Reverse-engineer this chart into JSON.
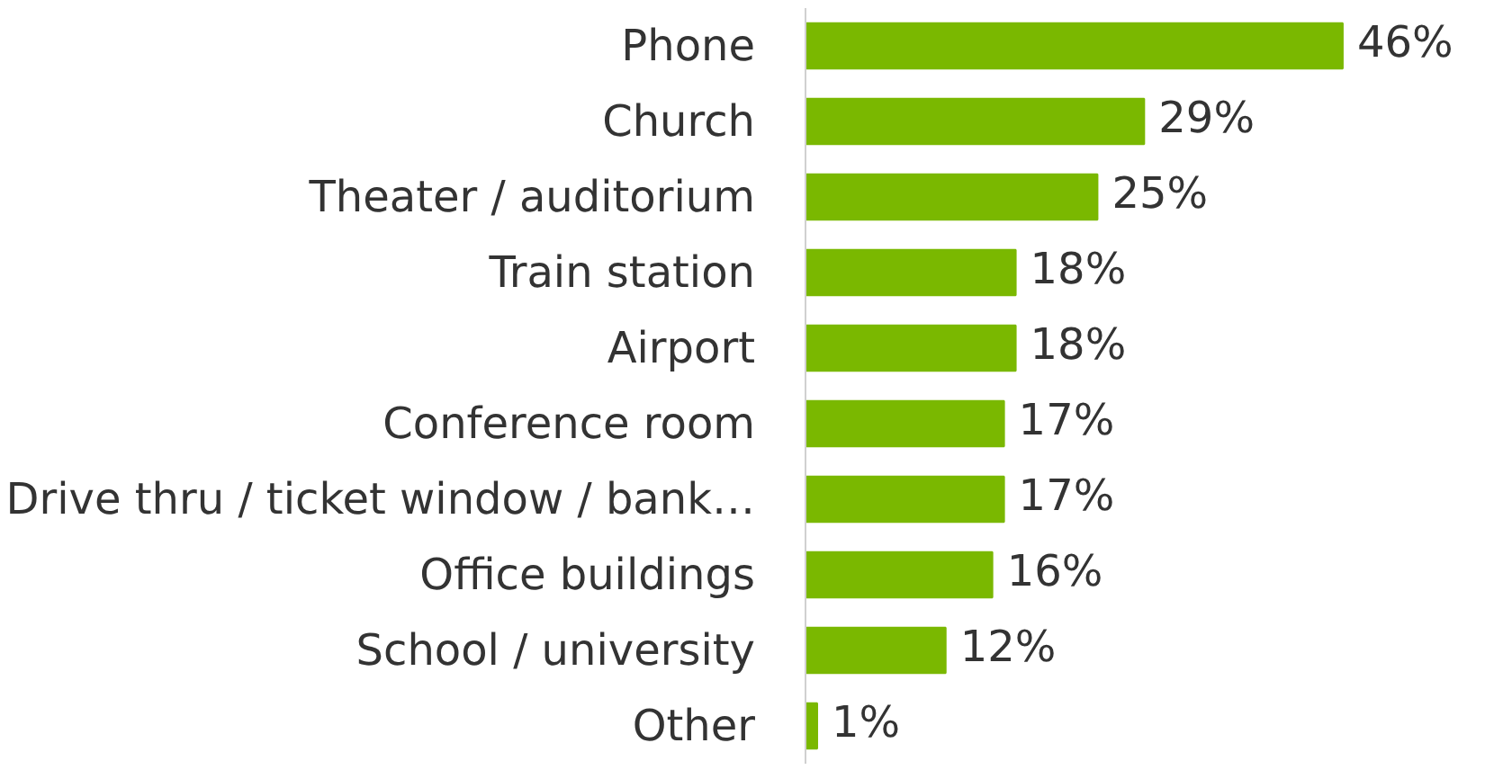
{
  "chart_data": {
    "type": "bar",
    "orientation": "horizontal",
    "categories": [
      "Phone",
      "Church",
      "Theater / auditorium",
      "Train station",
      "Airport",
      "Conference room",
      "Drive thru / ticket window / bank…",
      "Office buildings",
      "School / university",
      "Other"
    ],
    "values": [
      46,
      29,
      25,
      18,
      18,
      17,
      17,
      16,
      12,
      1
    ],
    "value_labels": [
      "46%",
      "29%",
      "25%",
      "18%",
      "18%",
      "17%",
      "17%",
      "16%",
      "12%",
      "1%"
    ],
    "color": "#7ab800"
  }
}
